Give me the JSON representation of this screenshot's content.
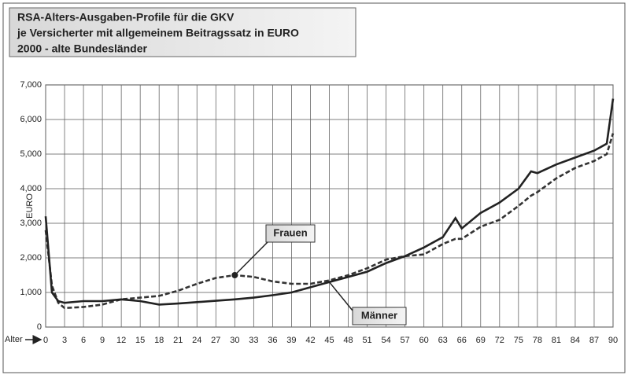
{
  "chart_data": {
    "type": "line",
    "title": [
      "RSA-Alters-Ausgaben-Profile für die GKV",
      "je Versicherter mit allgemeinem Beitragssatz in EURO",
      "2000 - alte Bundesländer"
    ],
    "y_label": "EURO",
    "x_label": "Alter",
    "x": [
      0,
      1,
      2,
      3,
      6,
      9,
      12,
      15,
      18,
      21,
      24,
      27,
      30,
      33,
      36,
      39,
      42,
      45,
      48,
      51,
      54,
      57,
      60,
      63,
      65,
      66,
      69,
      72,
      75,
      77,
      78,
      81,
      84,
      87,
      89,
      90
    ],
    "series": [
      {
        "name": "Frauen",
        "color": "#333333",
        "dash": true,
        "values": [
          2800,
          1200,
          700,
          550,
          580,
          650,
          800,
          850,
          900,
          1050,
          1250,
          1420,
          1500,
          1450,
          1320,
          1250,
          1250,
          1350,
          1500,
          1700,
          1950,
          2050,
          2100,
          2400,
          2550,
          2550,
          2900,
          3100,
          3500,
          3800,
          3900,
          4300,
          4600,
          4800,
          5000,
          5600
        ]
      },
      {
        "name": "Männer",
        "color": "#222222",
        "dash": false,
        "values": [
          3200,
          1000,
          750,
          700,
          750,
          750,
          800,
          750,
          650,
          680,
          720,
          760,
          800,
          850,
          920,
          1000,
          1150,
          1300,
          1450,
          1600,
          1850,
          2050,
          2300,
          2600,
          3150,
          2850,
          3300,
          3600,
          4000,
          4500,
          4450,
          4700,
          4900,
          5100,
          5300,
          6600
        ]
      }
    ],
    "xlim": [
      0,
      90
    ],
    "xticks": [
      0,
      3,
      6,
      9,
      12,
      15,
      18,
      21,
      24,
      27,
      30,
      33,
      36,
      39,
      42,
      45,
      48,
      51,
      54,
      57,
      60,
      63,
      66,
      69,
      72,
      75,
      78,
      81,
      84,
      87,
      90
    ],
    "ylim": [
      0,
      7000
    ],
    "yticks": [
      0,
      {
        "value": 1000,
        "label": "1,000"
      },
      {
        "value": 2000,
        "label": "2,000"
      },
      {
        "value": 3000,
        "label": "3,000"
      },
      {
        "value": 4000,
        "label": "4,000"
      },
      {
        "value": 5000,
        "label": "5,000"
      },
      {
        "value": 6000,
        "label": "6,000"
      },
      {
        "value": 7000,
        "label": "7,000"
      }
    ],
    "grid": true
  }
}
